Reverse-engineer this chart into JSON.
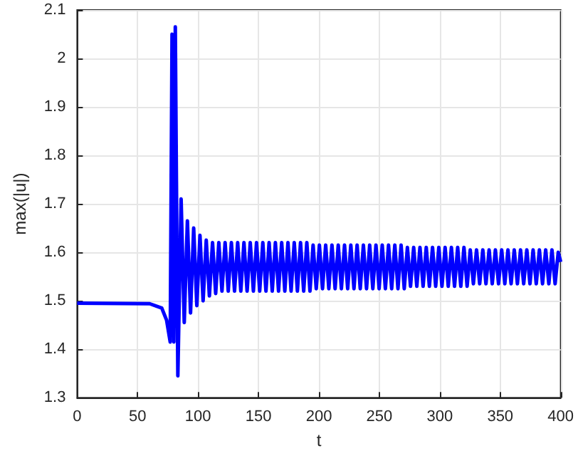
{
  "chart_data": {
    "type": "line",
    "xlabel": "t",
    "ylabel": "max(|u|)",
    "xlim": [
      0,
      400
    ],
    "xticks": [
      0,
      50,
      100,
      150,
      200,
      250,
      300,
      350,
      400
    ],
    "ylim": [
      1.3,
      2.1
    ],
    "yticks": [
      1.3,
      1.4,
      1.5,
      1.6,
      1.7,
      1.8,
      1.9,
      2,
      2.1
    ],
    "grid": true,
    "line_style": "solid",
    "marker": "none",
    "series": [
      {
        "color": "#0000ff",
        "x": [
          0,
          60,
          70,
          74,
          77,
          78.5,
          80,
          81.2,
          83.3,
          86,
          88.6,
          91.2,
          93.8,
          96.4,
          99,
          101.6,
          104.2,
          106.8,
          109.4,
          112,
          114.6,
          117.2,
          119.8,
          122.4,
          125,
          127.6,
          130.2,
          132.8,
          135.4,
          138,
          140.6,
          143.2,
          145.8,
          148.4,
          151,
          153.6,
          156.2,
          158.8,
          161.4,
          164,
          166.6,
          169.2,
          171.8,
          174.4,
          177,
          179.6,
          182.2,
          184.8,
          187.4,
          190,
          192.6,
          195.2,
          197.8,
          200.4,
          203,
          205.6,
          208.2,
          210.8,
          213.4,
          216,
          218.6,
          221.2,
          223.8,
          226.4,
          229,
          231.6,
          234.2,
          236.8,
          239.4,
          242,
          244.6,
          247.2,
          249.8,
          252.4,
          255,
          257.6,
          260.2,
          262.8,
          265.4,
          268,
          270.6,
          273.2,
          275.8,
          278.4,
          281,
          283.6,
          286.2,
          288.8,
          291.4,
          294,
          296.6,
          299.2,
          301.8,
          304.4,
          307,
          309.6,
          312.2,
          314.8,
          317.4,
          320,
          322.6,
          325.2,
          327.8,
          330.4,
          333,
          335.6,
          338.2,
          340.8,
          343.4,
          346,
          348.6,
          351.2,
          353.8,
          356.4,
          359,
          361.6,
          364.2,
          366.8,
          369.4,
          372,
          374.6,
          377.2,
          379.8,
          382.4,
          385,
          387.6,
          390.2,
          392.8,
          395.4,
          398,
          400
        ],
        "values": [
          1.495,
          1.494,
          1.485,
          1.46,
          1.415,
          2.05,
          1.415,
          2.065,
          1.345,
          1.71,
          1.455,
          1.665,
          1.475,
          1.65,
          1.49,
          1.635,
          1.5,
          1.625,
          1.51,
          1.62,
          1.515,
          1.62,
          1.52,
          1.62,
          1.52,
          1.62,
          1.52,
          1.62,
          1.52,
          1.62,
          1.52,
          1.62,
          1.52,
          1.62,
          1.52,
          1.62,
          1.52,
          1.62,
          1.52,
          1.62,
          1.52,
          1.62,
          1.52,
          1.62,
          1.52,
          1.62,
          1.52,
          1.62,
          1.52,
          1.62,
          1.52,
          1.615,
          1.525,
          1.615,
          1.525,
          1.615,
          1.525,
          1.615,
          1.525,
          1.615,
          1.525,
          1.615,
          1.525,
          1.615,
          1.525,
          1.615,
          1.525,
          1.615,
          1.525,
          1.615,
          1.525,
          1.615,
          1.525,
          1.615,
          1.525,
          1.615,
          1.525,
          1.615,
          1.525,
          1.615,
          1.525,
          1.61,
          1.53,
          1.61,
          1.53,
          1.61,
          1.53,
          1.61,
          1.53,
          1.61,
          1.53,
          1.61,
          1.53,
          1.61,
          1.53,
          1.61,
          1.53,
          1.61,
          1.53,
          1.61,
          1.53,
          1.605,
          1.535,
          1.605,
          1.535,
          1.605,
          1.535,
          1.605,
          1.535,
          1.605,
          1.535,
          1.605,
          1.535,
          1.605,
          1.535,
          1.605,
          1.535,
          1.605,
          1.535,
          1.605,
          1.535,
          1.605,
          1.535,
          1.605,
          1.535,
          1.605,
          1.535,
          1.605,
          1.535,
          1.6,
          1.58
        ]
      }
    ]
  }
}
